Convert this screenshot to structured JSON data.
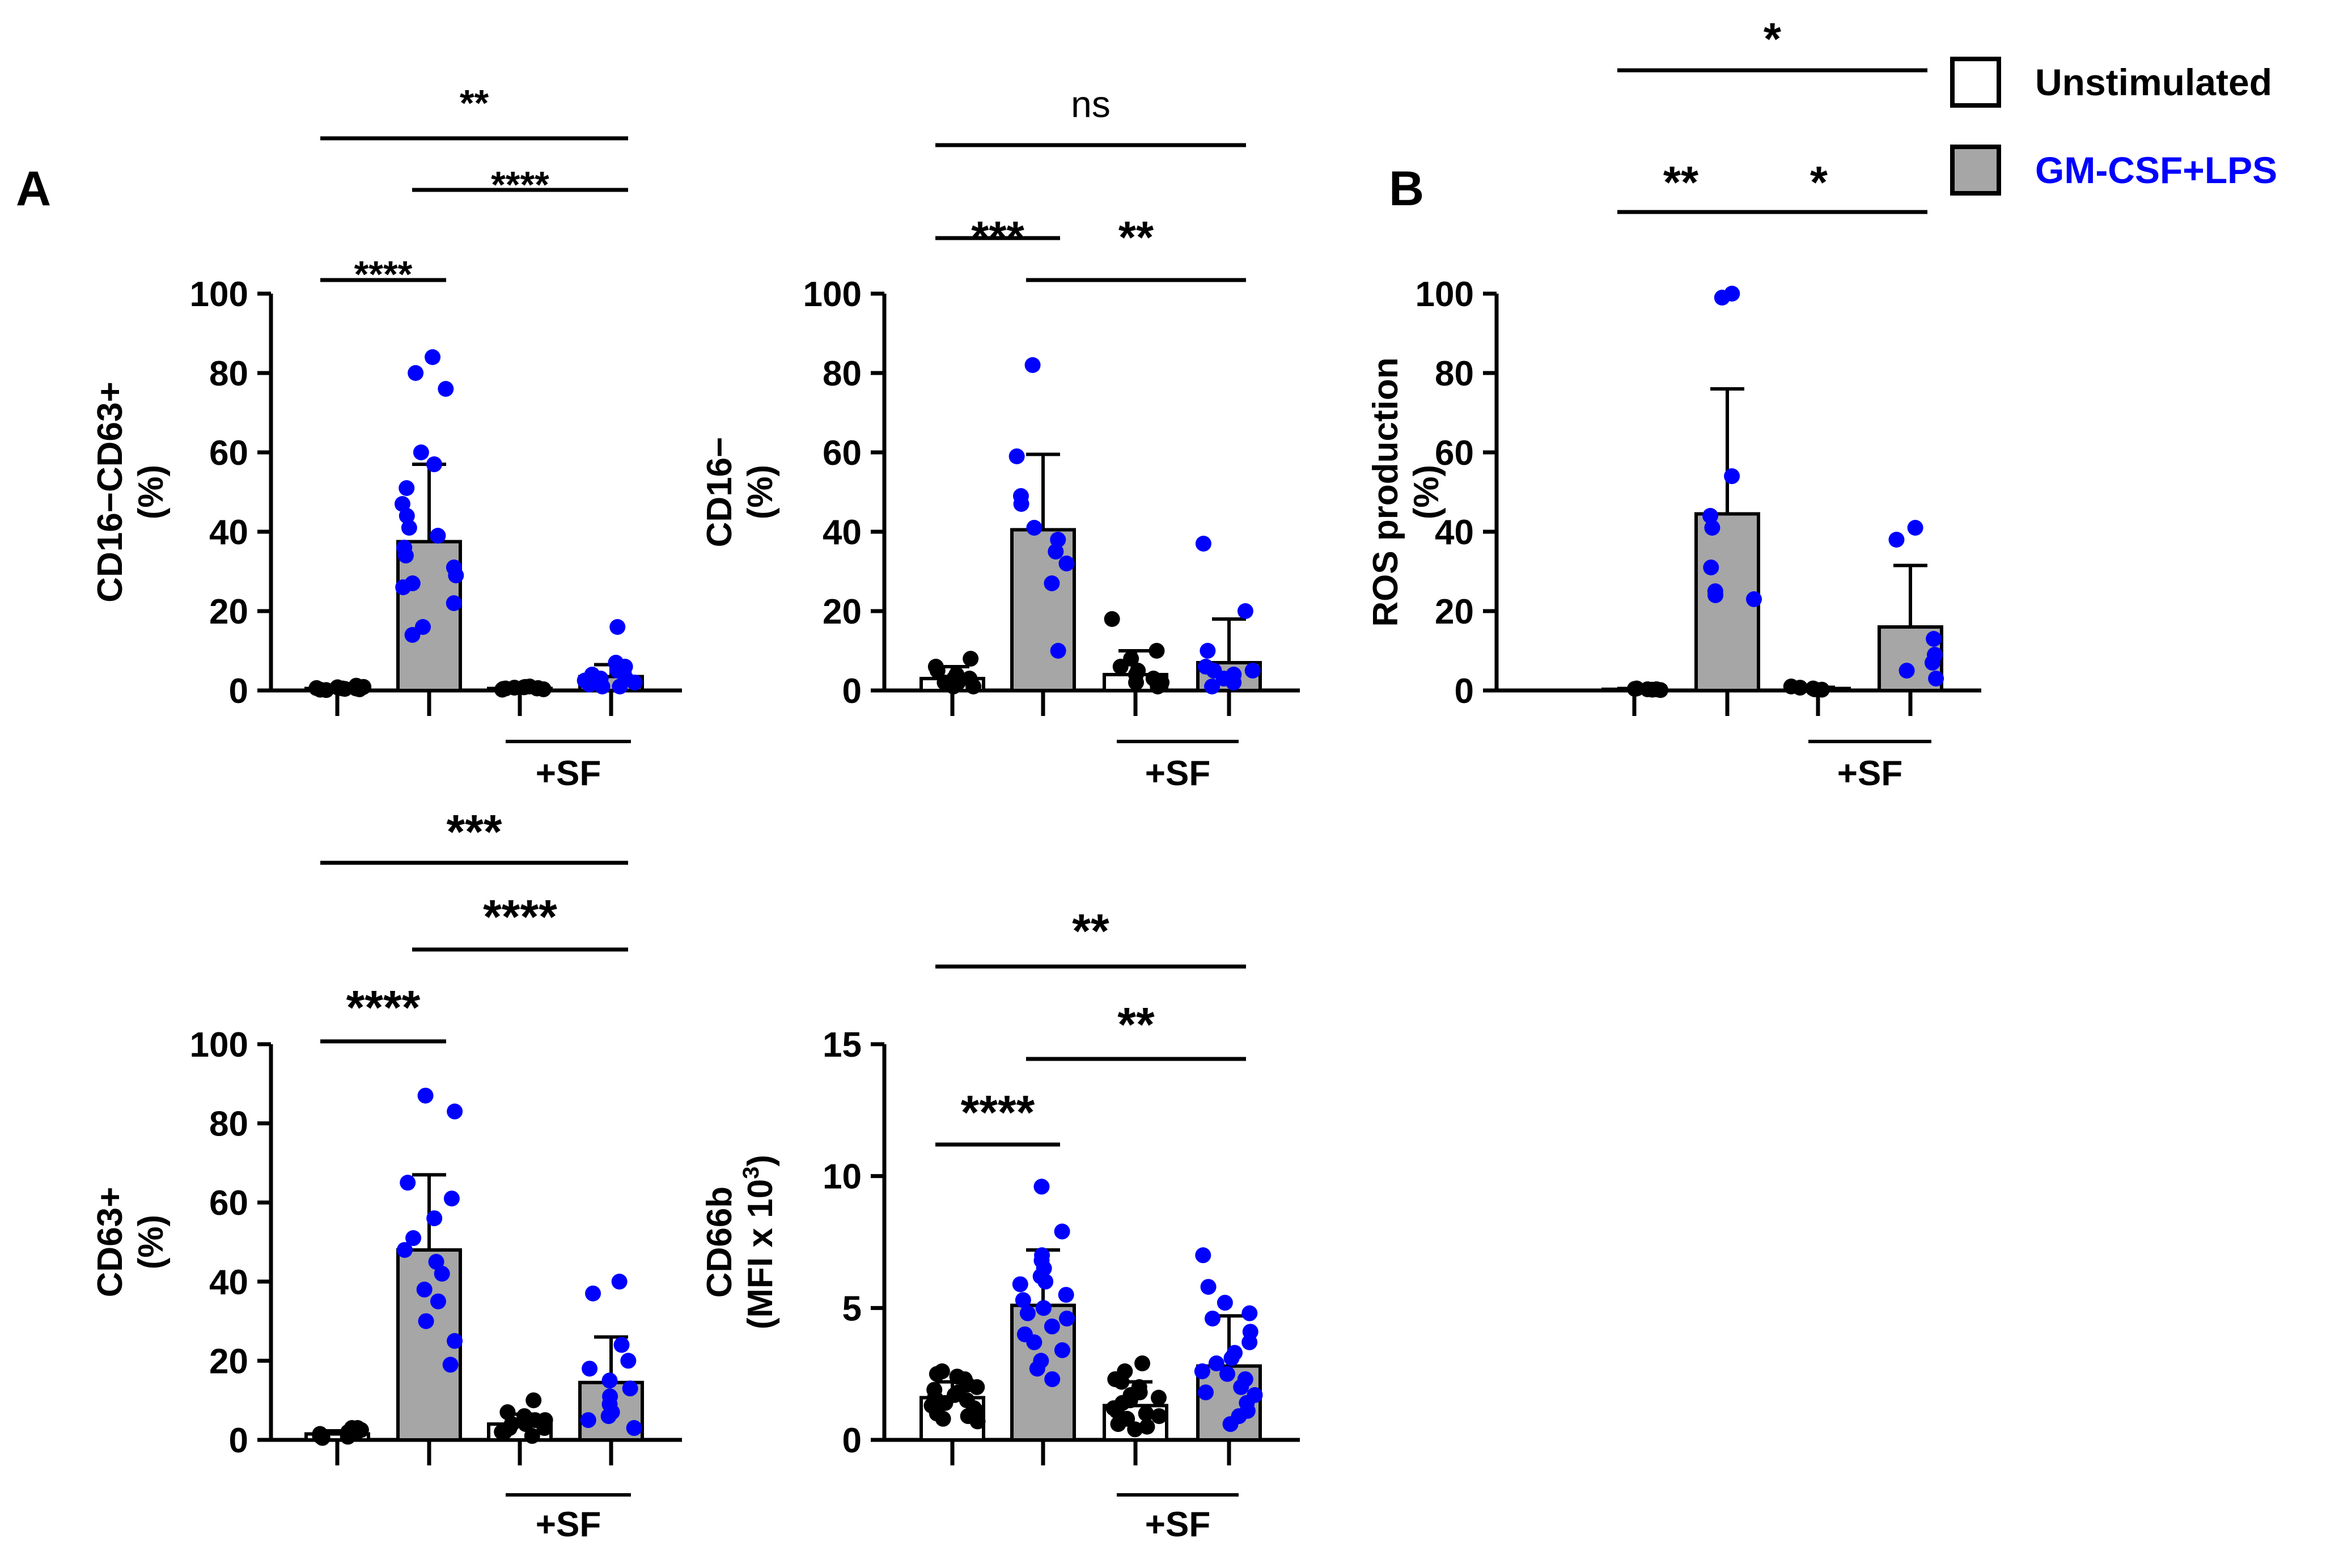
{
  "figure": {
    "panel_labels": [
      "A",
      "B"
    ],
    "legend": [
      {
        "label": "Unstimulated",
        "fill": "#ffffff",
        "color": "#000000"
      },
      {
        "label": "GM-CSF+LPS",
        "fill": "#a6a6a6",
        "color": "#0000ff"
      }
    ],
    "colors": {
      "unstim_dots": "#000000",
      "stim_dots": "#0000ff",
      "stim_bar": "#a6a6a6",
      "axis": "#000000"
    }
  },
  "chart_data": [
    {
      "type": "bar",
      "panel": "A",
      "ylabel": [
        "CD16−CD63+",
        "(%)"
      ],
      "ylim": [
        0,
        100
      ],
      "yticks": [
        0,
        20,
        40,
        60,
        80,
        100
      ],
      "group_label": "+SF",
      "series": [
        {
          "name": "Unstimulated",
          "treatment": "none",
          "value": 0.5,
          "error": 0.5,
          "points": [
            0.2,
            0.8,
            0.5,
            1.2,
            0.3,
            0.6,
            0.4,
            0.9,
            0.1,
            0.7,
            0.5
          ]
        },
        {
          "name": "GM-CSF+LPS",
          "treatment": "none",
          "value": 37.5,
          "error": 19.5,
          "points": [
            84,
            80,
            76,
            60,
            57,
            51,
            47,
            44,
            41,
            39,
            36,
            34,
            31,
            29,
            27,
            26,
            22,
            16,
            14
          ]
        },
        {
          "name": "Unstimulated",
          "treatment": "+SF",
          "value": 0.5,
          "error": 0.4,
          "points": [
            0.3,
            0.7,
            0.5,
            1.0,
            0.2,
            0.6,
            0.4,
            0.8,
            0.5,
            0.9
          ]
        },
        {
          "name": "GM-CSF+LPS",
          "treatment": "+SF",
          "value": 3.5,
          "error": 3.0,
          "points": [
            16,
            7,
            6,
            5,
            4,
            3,
            2.5,
            2,
            1.5,
            1,
            3,
            4.5,
            2,
            1
          ]
        }
      ],
      "significance": [
        {
          "from": 0,
          "to": 3,
          "label": "**"
        },
        {
          "from": 1,
          "to": 3,
          "label": "****"
        },
        {
          "from": 0,
          "to": 1,
          "label": "****"
        }
      ]
    },
    {
      "type": "bar",
      "panel": "A",
      "ylabel": [
        "CD16−",
        "(%)"
      ],
      "ylim": [
        0,
        100
      ],
      "yticks": [
        0,
        20,
        40,
        60,
        80,
        100
      ],
      "group_label": "+SF",
      "series": [
        {
          "name": "Unstimulated",
          "treatment": "none",
          "value": 3.0,
          "error": 3.0,
          "points": [
            8,
            6,
            4,
            3,
            2,
            1,
            2,
            3,
            5,
            1
          ]
        },
        {
          "name": "GM-CSF+LPS",
          "treatment": "none",
          "value": 40.5,
          "error": 19.0,
          "points": [
            82,
            59,
            49,
            47,
            41,
            38,
            35,
            32,
            27,
            10
          ]
        },
        {
          "name": "Unstimulated",
          "treatment": "+SF",
          "value": 4.0,
          "error": 6.0,
          "points": [
            18,
            10,
            8,
            6,
            4,
            3,
            2,
            1,
            5,
            2
          ]
        },
        {
          "name": "GM-CSF+LPS",
          "treatment": "+SF",
          "value": 7.0,
          "error": 11.0,
          "points": [
            37,
            20,
            10,
            6,
            5,
            4,
            3,
            2,
            1,
            5
          ]
        }
      ],
      "significance": [
        {
          "from": 0,
          "to": 3,
          "label": "ns"
        },
        {
          "from": 0,
          "to": 1,
          "label": "***"
        },
        {
          "from": 1,
          "to": 3,
          "label": "**"
        }
      ]
    },
    {
      "type": "bar",
      "panel": "B",
      "ylabel": [
        "ROS production",
        "(%)"
      ],
      "ylim": [
        0,
        100
      ],
      "yticks": [
        0,
        20,
        40,
        60,
        80,
        100
      ],
      "group_label": "+SF",
      "series": [
        {
          "name": "Unstimulated",
          "treatment": "none",
          "value": 0.3,
          "error": 0.2,
          "points": [
            0.2,
            0.4,
            0.3,
            0.5,
            0.1,
            0.3
          ]
        },
        {
          "name": "GM-CSF+LPS",
          "treatment": "none",
          "value": 44.5,
          "error": 31.5,
          "points": [
            100,
            99,
            54,
            44,
            41,
            31,
            25,
            24,
            23
          ]
        },
        {
          "name": "Unstimulated",
          "treatment": "+SF",
          "value": 0.5,
          "error": 0.3,
          "points": [
            1,
            0.5,
            0.3,
            0.7,
            0.2
          ]
        },
        {
          "name": "GM-CSF+LPS",
          "treatment": "+SF",
          "value": 16.0,
          "error": 15.5,
          "points": [
            41,
            38,
            13,
            9,
            7,
            5,
            3
          ]
        }
      ],
      "significance": [
        {
          "from": 0,
          "to": 3,
          "label": "*"
        },
        {
          "from": 0,
          "to": 1,
          "label": "**"
        },
        {
          "from": 1,
          "to": 3,
          "label": "*"
        }
      ]
    },
    {
      "type": "bar",
      "panel": "A",
      "ylabel": [
        "CD63+",
        "(%)"
      ],
      "ylim": [
        0,
        100
      ],
      "yticks": [
        0,
        20,
        40,
        60,
        80,
        100
      ],
      "group_label": "+SF",
      "series": [
        {
          "name": "Unstimulated",
          "treatment": "none",
          "value": 1.5,
          "error": 0.8,
          "points": [
            3,
            2,
            1.5,
            1,
            2.5,
            0.5,
            1,
            2,
            1.5,
            3,
            0.8
          ]
        },
        {
          "name": "GM-CSF+LPS",
          "treatment": "none",
          "value": 48.0,
          "error": 19.0,
          "points": [
            87,
            83,
            65,
            61,
            56,
            51,
            48,
            45,
            42,
            38,
            35,
            30,
            25,
            19
          ]
        },
        {
          "name": "Unstimulated",
          "treatment": "+SF",
          "value": 4.0,
          "error": 2.5,
          "points": [
            10,
            7,
            6,
            5,
            4,
            3,
            2,
            1,
            5,
            3,
            2,
            4
          ]
        },
        {
          "name": "GM-CSF+LPS",
          "treatment": "+SF",
          "value": 14.5,
          "error": 11.5,
          "points": [
            40,
            37,
            24,
            20,
            18,
            15,
            13,
            11,
            9,
            7,
            6,
            5,
            3
          ]
        }
      ],
      "significance": [
        {
          "from": 0,
          "to": 3,
          "label": "***"
        },
        {
          "from": 1,
          "to": 3,
          "label": "****"
        },
        {
          "from": 0,
          "to": 1,
          "label": "****"
        }
      ]
    },
    {
      "type": "bar",
      "panel": "A",
      "ylabel": [
        "CD66b",
        "(MFI x 10",
        "3",
        ")"
      ],
      "ylim": [
        0,
        15
      ],
      "yticks": [
        0,
        5,
        10,
        15
      ],
      "group_label": "+SF",
      "series": [
        {
          "name": "Unstimulated",
          "treatment": "none",
          "value": 1.6,
          "error": 0.6,
          "points": [
            2.6,
            2.5,
            2.3,
            2.1,
            2.0,
            1.9,
            1.8,
            1.7,
            1.6,
            1.5,
            1.4,
            1.3,
            1.2,
            1.1,
            1.0,
            0.9,
            0.8,
            2.4,
            1.5,
            0.7
          ]
        },
        {
          "name": "GM-CSF+LPS",
          "treatment": "none",
          "value": 5.1,
          "error": 2.1,
          "points": [
            9.6,
            7.9,
            7.0,
            6.8,
            6.5,
            6.2,
            5.9,
            5.5,
            5.0,
            4.6,
            4.3,
            4.0,
            3.7,
            3.4,
            3.0,
            2.7,
            2.3,
            5.3,
            6.0,
            4.8
          ]
        },
        {
          "name": "Unstimulated",
          "treatment": "+SF",
          "value": 1.3,
          "error": 0.9,
          "points": [
            2.9,
            2.6,
            2.3,
            2.0,
            1.8,
            1.6,
            1.4,
            1.2,
            1.0,
            0.8,
            0.6,
            0.4,
            1.5,
            2.2,
            0.9,
            1.7,
            0.5,
            1.1
          ]
        },
        {
          "name": "GM-CSF+LPS",
          "treatment": "+SF",
          "value": 2.8,
          "error": 1.9,
          "points": [
            7.0,
            5.8,
            5.2,
            4.6,
            4.1,
            3.7,
            3.3,
            2.9,
            2.6,
            2.3,
            2.0,
            1.7,
            1.4,
            1.1,
            0.9,
            3.1,
            2.5,
            4.8,
            1.8,
            0.6
          ]
        }
      ],
      "significance": [
        {
          "from": 0,
          "to": 3,
          "label": "**"
        },
        {
          "from": 1,
          "to": 3,
          "label": "**"
        },
        {
          "from": 0,
          "to": 1,
          "label": "****"
        }
      ]
    }
  ]
}
